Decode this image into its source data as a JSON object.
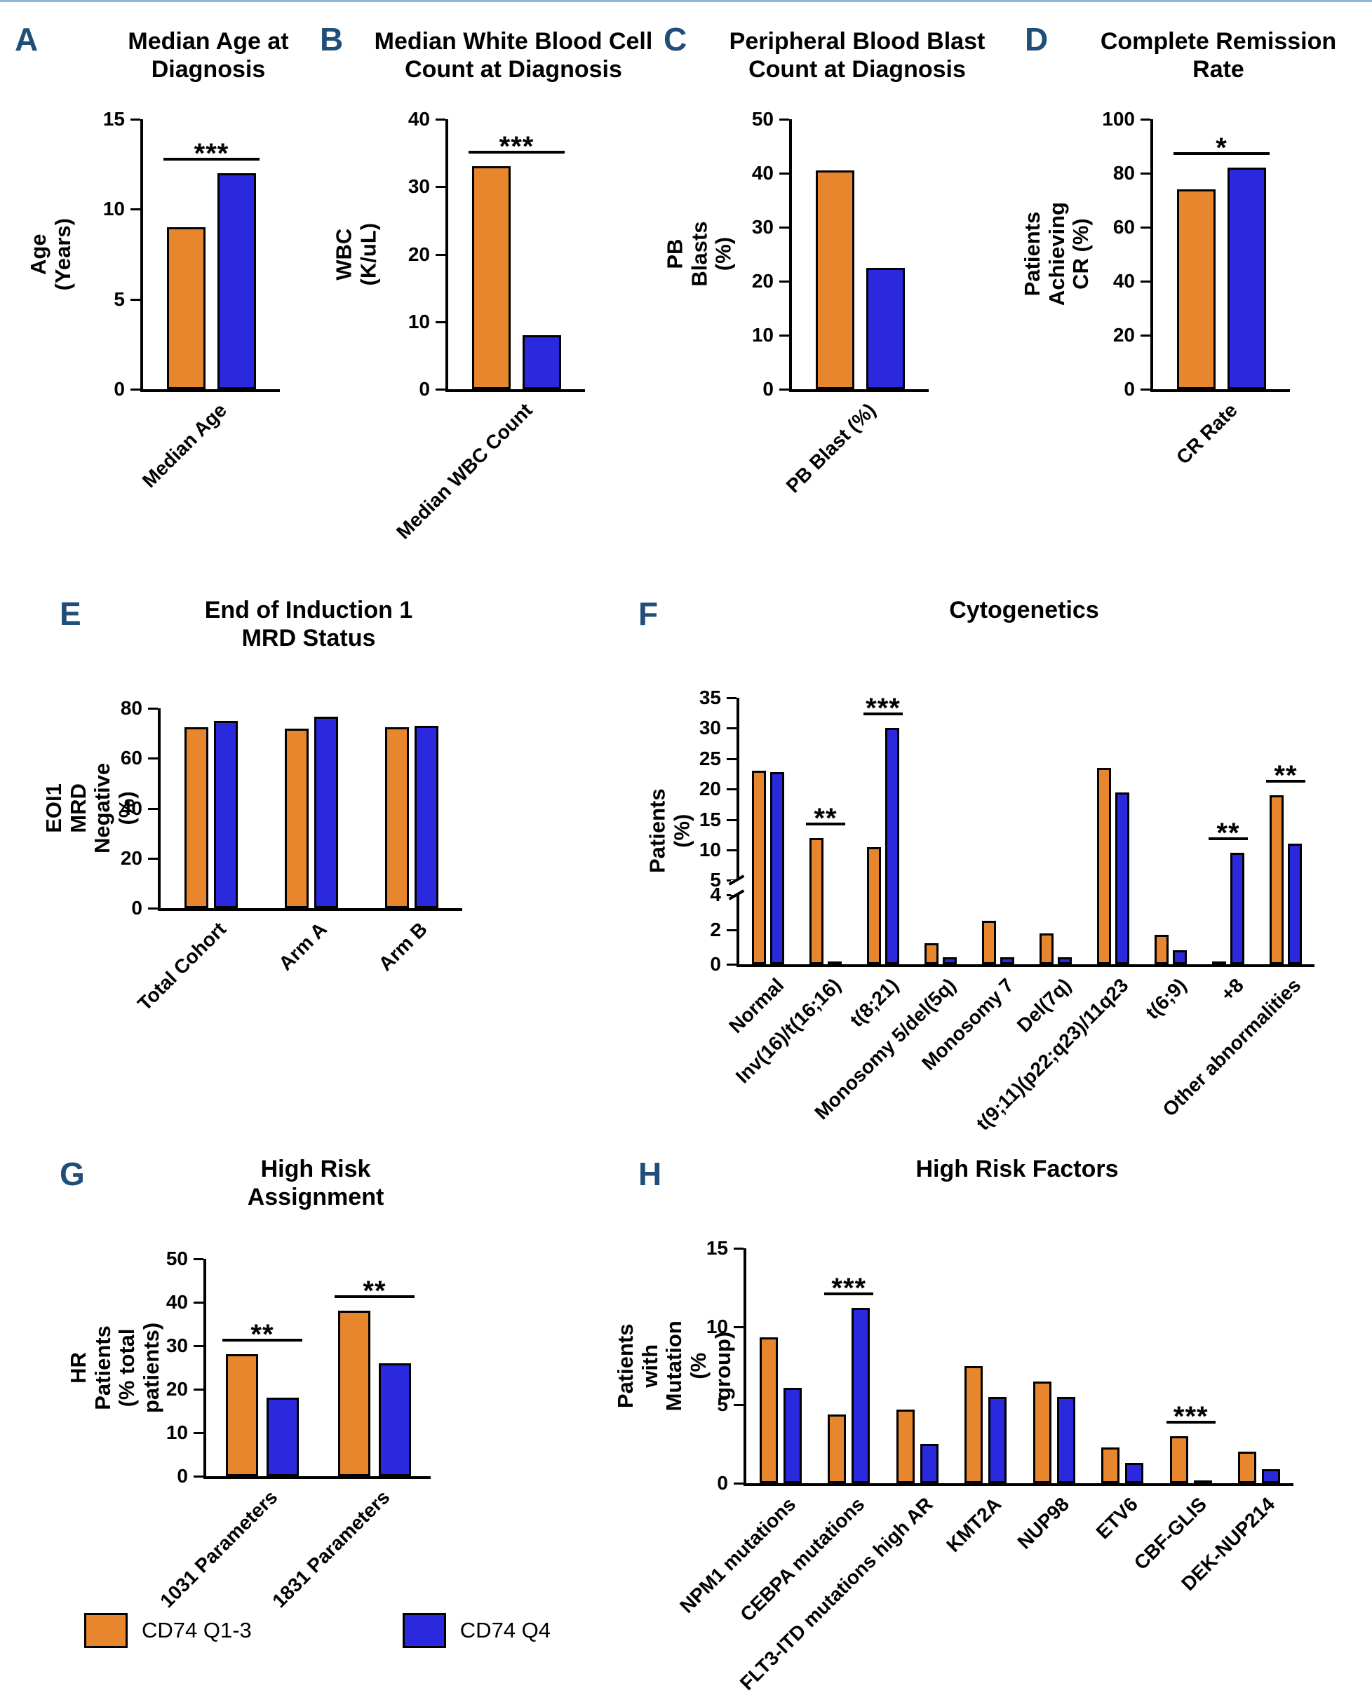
{
  "figure": {
    "background": "#ffffff"
  },
  "colors": {
    "series": [
      "#E8862D",
      "#2B29DE"
    ],
    "panel_letter": "#1F4E79",
    "axis": "#000000",
    "significance": "#000000"
  },
  "legend": {
    "position": "bottom-left",
    "items": [
      {
        "label": "CD74 Q1-3",
        "color": "#E8862D"
      },
      {
        "label": "CD74 Q4",
        "color": "#2B29DE"
      }
    ]
  },
  "chart_data": [
    {
      "panel": "A",
      "type": "bar",
      "title": "Median Age at\nDiagnosis",
      "ylabel": "Age (Years)",
      "ylim": [
        0,
        15
      ],
      "yticks": [
        0,
        5,
        10,
        15
      ],
      "categories": [
        "Median Age"
      ],
      "series": [
        {
          "name": "CD74 Q1-3",
          "values": [
            9
          ]
        },
        {
          "name": "CD74 Q4",
          "values": [
            12
          ]
        }
      ],
      "significance": [
        {
          "cat": 0,
          "label": "***"
        }
      ]
    },
    {
      "panel": "B",
      "type": "bar",
      "title": "Median White Blood Cell\nCount at Diagnosis",
      "ylabel": "WBC (K/uL)",
      "ylim": [
        0,
        40
      ],
      "yticks": [
        0,
        10,
        20,
        30,
        40
      ],
      "categories": [
        "Median WBC Count"
      ],
      "series": [
        {
          "name": "CD74 Q1-3",
          "values": [
            33
          ]
        },
        {
          "name": "CD74 Q4",
          "values": [
            8
          ]
        }
      ],
      "significance": [
        {
          "cat": 0,
          "label": "***"
        }
      ]
    },
    {
      "panel": "C",
      "type": "bar",
      "title": "Peripheral Blood Blast\nCount at Diagnosis",
      "ylabel": "PB Blasts (%)",
      "ylim": [
        0,
        50
      ],
      "yticks": [
        0,
        10,
        20,
        30,
        40,
        50
      ],
      "categories": [
        "PB Blast (%)"
      ],
      "series": [
        {
          "name": "CD74 Q1-3",
          "values": [
            40.5
          ]
        },
        {
          "name": "CD74 Q4",
          "values": [
            22.5
          ]
        }
      ],
      "significance": []
    },
    {
      "panel": "D",
      "type": "bar",
      "title": "Complete Remission\nRate",
      "ylabel": "Patients Achieving CR (%)",
      "ylim": [
        0,
        100
      ],
      "yticks": [
        0,
        20,
        40,
        60,
        80,
        100
      ],
      "categories": [
        "CR Rate"
      ],
      "series": [
        {
          "name": "CD74 Q1-3",
          "values": [
            74
          ]
        },
        {
          "name": "CD74 Q4",
          "values": [
            82
          ]
        }
      ],
      "significance": [
        {
          "cat": 0,
          "label": "*"
        }
      ]
    },
    {
      "panel": "E",
      "type": "bar",
      "title": "End of Induction 1\nMRD Status",
      "ylabel": "EOI1 MRD Negative (%)",
      "ylim": [
        0,
        80
      ],
      "yticks": [
        0,
        20,
        40,
        60,
        80
      ],
      "categories": [
        "Total Cohort",
        "Arm A",
        "Arm B"
      ],
      "series": [
        {
          "name": "CD74 Q1-3",
          "values": [
            72.5,
            72,
            72.5
          ]
        },
        {
          "name": "CD74 Q4",
          "values": [
            75,
            76.5,
            73
          ]
        }
      ],
      "significance": []
    },
    {
      "panel": "F",
      "type": "bar",
      "title": "Cytogenetics",
      "ylabel": "Patients (%)",
      "ylim": [
        0,
        35
      ],
      "axis_break": {
        "lower_max": 4,
        "upper_min": 5,
        "lower_ticks": [
          0,
          2,
          4
        ],
        "upper_ticks": [
          5,
          10,
          15,
          20,
          25,
          30,
          35
        ],
        "lower_frac": 0.26,
        "gap_frac": 0.055
      },
      "categories": [
        "Normal",
        "Inv(16)/t(16;16)",
        "t(8;21)",
        "Monosomy 5/del(5q)",
        "Monosomy 7",
        "Del(7q)",
        "t(9;11)(p22;q23)/11q23",
        "t(6;9)",
        "+8",
        "Other abnormalities"
      ],
      "series": [
        {
          "name": "CD74 Q1-3",
          "values": [
            23,
            12,
            10.5,
            1.2,
            2.5,
            1.8,
            23.5,
            1.7,
            0,
            19
          ]
        },
        {
          "name": "CD74 Q4",
          "values": [
            22.8,
            0,
            30,
            0.4,
            0.4,
            0.4,
            19.5,
            0.8,
            9.5,
            11
          ]
        }
      ],
      "significance": [
        {
          "cat": 1,
          "label": "**"
        },
        {
          "cat": 2,
          "label": "***"
        },
        {
          "cat": 8,
          "label": "**"
        },
        {
          "cat": 9,
          "label": "**"
        }
      ]
    },
    {
      "panel": "G",
      "type": "bar",
      "title": "High Risk\nAssignment",
      "ylabel": "HR Patients\n(% total patients)",
      "ylim": [
        0,
        50
      ],
      "yticks": [
        0,
        10,
        20,
        30,
        40,
        50
      ],
      "categories": [
        "1031 Parameters",
        "1831 Parameters"
      ],
      "series": [
        {
          "name": "CD74 Q1-3",
          "values": [
            28,
            38
          ]
        },
        {
          "name": "CD74 Q4",
          "values": [
            18,
            26
          ]
        }
      ],
      "significance": [
        {
          "cat": 0,
          "label": "**"
        },
        {
          "cat": 1,
          "label": "**"
        }
      ]
    },
    {
      "panel": "H",
      "type": "bar",
      "title": "High Risk Factors",
      "ylabel": "Patients with Mutation\n(% group)",
      "ylim": [
        0,
        15
      ],
      "yticks": [
        0,
        5,
        10,
        15
      ],
      "categories": [
        "NPM1 mutations",
        "CEBPA mutations",
        "FLT3-ITD mutations high AR",
        "KMT2A",
        "NUP98",
        "ETV6",
        "CBF-GLIS",
        "DEK-NUP214"
      ],
      "series": [
        {
          "name": "CD74 Q1-3",
          "values": [
            9.3,
            4.4,
            4.7,
            7.5,
            6.5,
            2.3,
            3,
            2
          ]
        },
        {
          "name": "CD74 Q4",
          "values": [
            6.1,
            11.2,
            2.5,
            5.5,
            5.5,
            1.3,
            0,
            0.9
          ]
        }
      ],
      "significance": [
        {
          "cat": 1,
          "label": "***"
        },
        {
          "cat": 6,
          "label": "***"
        }
      ]
    }
  ]
}
